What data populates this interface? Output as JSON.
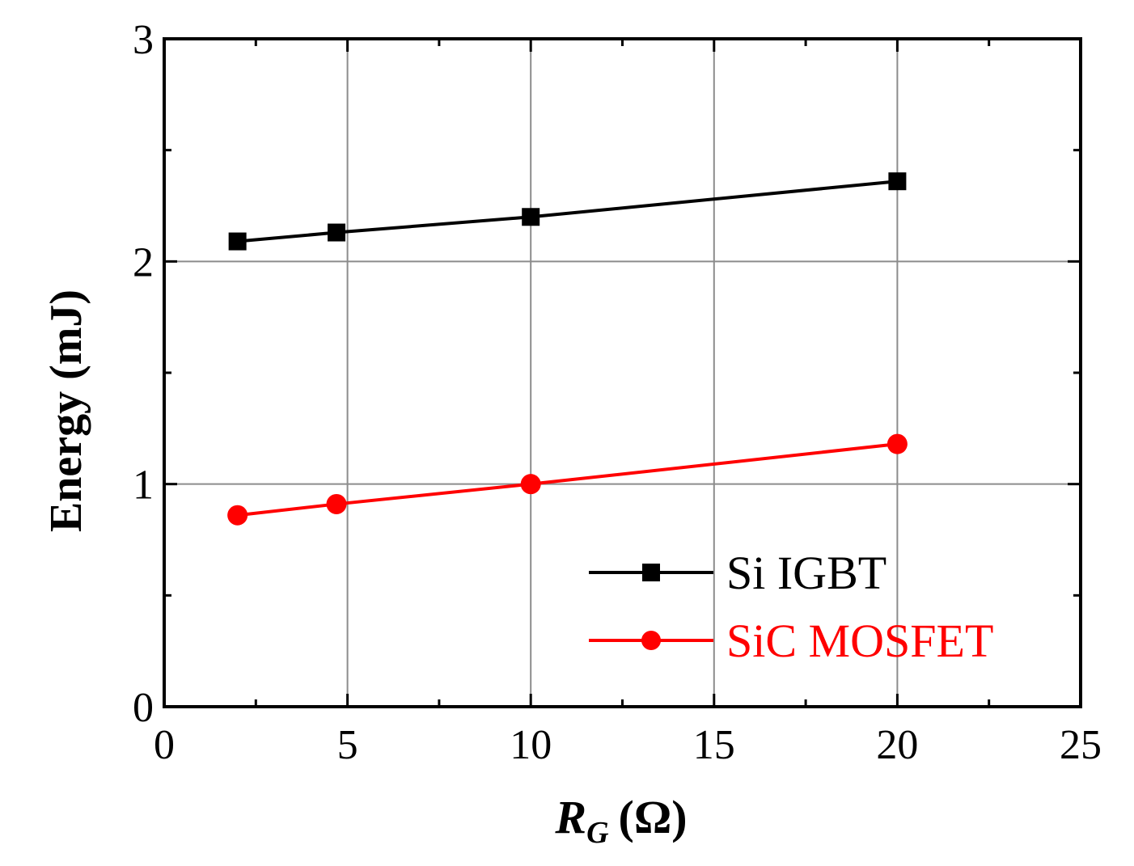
{
  "chart_data": {
    "type": "line",
    "title": "",
    "xlabel": {
      "main": "R",
      "sub": "G",
      "unit": "(Ω)"
    },
    "ylabel": "Energy (mJ)",
    "xlim": [
      0,
      25
    ],
    "ylim": [
      0,
      3
    ],
    "xticks": [
      0,
      5,
      10,
      15,
      20,
      25
    ],
    "yticks": [
      0,
      1,
      2,
      3
    ],
    "xtick_labels": [
      "0",
      "5",
      "10",
      "15",
      "20",
      "25"
    ],
    "ytick_labels": [
      "0",
      "1",
      "2",
      "3"
    ],
    "grid": true,
    "legend_position": "bottom-right",
    "series": [
      {
        "name": "Si IGBT",
        "color": "#000000",
        "marker": "square",
        "x": [
          2,
          4.7,
          10,
          20
        ],
        "y": [
          2.09,
          2.13,
          2.2,
          2.36
        ]
      },
      {
        "name": "SiC MOSFET",
        "color": "#ff0000",
        "marker": "circle",
        "x": [
          2,
          4.7,
          10,
          20
        ],
        "y": [
          0.86,
          0.91,
          1.0,
          1.18
        ]
      }
    ]
  }
}
